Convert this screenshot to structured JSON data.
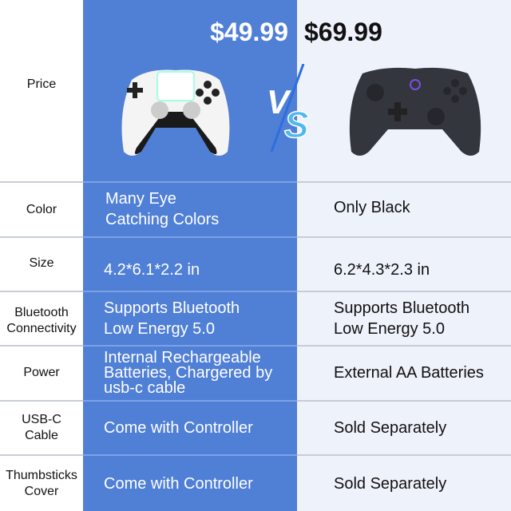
{
  "colors": {
    "blue": "#507fd6",
    "right_bg": "#eef2fb"
  },
  "prices": {
    "left": "$49.99",
    "right": "$69.99"
  },
  "vs_logo": "VS",
  "rows": [
    {
      "label": [
        "Price"
      ]
    },
    {
      "label": [
        "Color"
      ],
      "left": [
        "Many Eye",
        "Catching Colors"
      ],
      "right": [
        "Only Black"
      ]
    },
    {
      "label": [
        "Size"
      ],
      "left": [
        "4.2*6.1*2.2 in"
      ],
      "right": [
        "6.2*4.3*2.3 in"
      ]
    },
    {
      "label": [
        "Bluetooth",
        "Connectivity"
      ],
      "left": [
        "Supports Bluetooth",
        "Low Energy 5.0"
      ],
      "right": [
        "Supports Bluetooth",
        "Low Energy 5.0"
      ]
    },
    {
      "label": [
        "Power"
      ],
      "left": [
        "Internal Rechargeable",
        "Batteries, Chargered by",
        "usb-c cable"
      ],
      "right": [
        "External AA Batteries"
      ]
    },
    {
      "label": [
        "USB-C",
        "Cable"
      ],
      "left": [
        "Come with Controller"
      ],
      "right": [
        "Sold Separately"
      ]
    },
    {
      "label": [
        "Thumbsticks",
        "Cover"
      ],
      "left": [
        "Come with Controller"
      ],
      "right": [
        "Sold Separately"
      ]
    }
  ]
}
